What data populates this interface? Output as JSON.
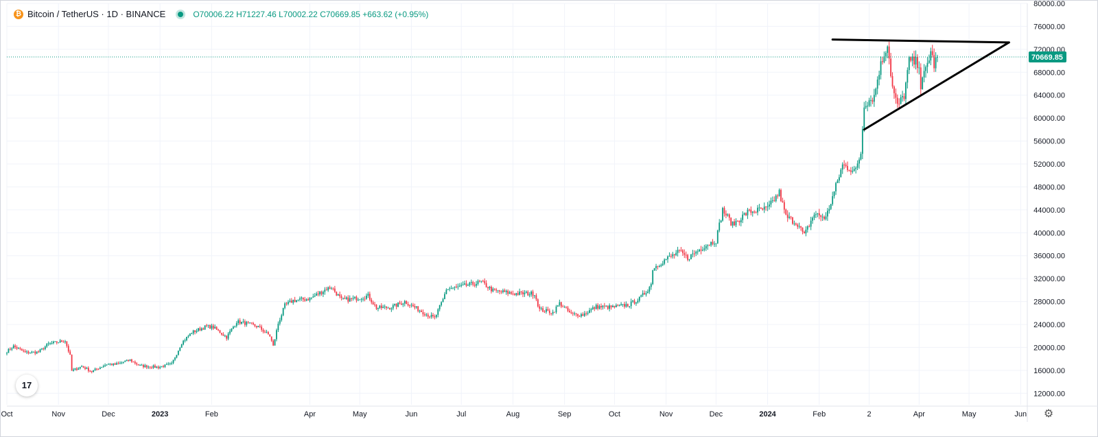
{
  "legend": {
    "symbol_text": "Bitcoin / TetherUS · 1D · BINANCE",
    "open": "O70006.22",
    "high": "H71227.46",
    "low": "L70002.22",
    "close": "C70669.85",
    "change": "+663.62 (+0.95%)"
  },
  "logo": {
    "text": "17",
    "icon": "tradingview-logo-icon"
  },
  "settings": {
    "icon": "gear-icon"
  },
  "colors": {
    "up": "#089981",
    "down": "#f23645",
    "grid": "#f0f3fa",
    "axis_text": "#131722",
    "price_tag": "#089981",
    "drawing": "#000000"
  },
  "chart_data": {
    "type": "candlestick",
    "title": "Bitcoin / TetherUS · 1D · BINANCE",
    "last_price": 70669.85,
    "last_price_label": "70669.85",
    "ylim": [
      10000,
      80000
    ],
    "y_ticks": [
      12000,
      16000,
      20000,
      24000,
      28000,
      32000,
      36000,
      40000,
      44000,
      48000,
      52000,
      56000,
      60000,
      64000,
      68000,
      72000,
      76000,
      80000
    ],
    "y_tick_labels": [
      "12000.00",
      "16000.00",
      "20000.00",
      "24000.00",
      "28000.00",
      "32000.00",
      "36000.00",
      "40000.00",
      "44000.00",
      "48000.00",
      "52000.00",
      "56000.00",
      "60000.00",
      "64000.00",
      "68000.00",
      "72000.00",
      "76000.00",
      "80000.00"
    ],
    "x_ticks": [
      {
        "label": "Oct",
        "date": "2022-10-01"
      },
      {
        "label": "Nov",
        "date": "2022-11-01"
      },
      {
        "label": "Dec",
        "date": "2022-12-01"
      },
      {
        "label": "2023",
        "date": "2023-01-01",
        "bold": true
      },
      {
        "label": "Feb",
        "date": "2023-02-01"
      },
      {
        "label": "Apr",
        "date": "2023-04-01"
      },
      {
        "label": "May",
        "date": "2023-05-01"
      },
      {
        "label": "Jun",
        "date": "2023-06-01"
      },
      {
        "label": "Jul",
        "date": "2023-07-01"
      },
      {
        "label": "Aug",
        "date": "2023-08-01"
      },
      {
        "label": "Sep",
        "date": "2023-09-01"
      },
      {
        "label": "Oct",
        "date": "2023-10-01"
      },
      {
        "label": "Nov",
        "date": "2023-11-01"
      },
      {
        "label": "Dec",
        "date": "2023-12-01"
      },
      {
        "label": "2024",
        "date": "2024-01-01",
        "bold": true
      },
      {
        "label": "Feb",
        "date": "2024-02-01"
      },
      {
        "label": "2",
        "date": "2024-03-02"
      },
      {
        "label": "Apr",
        "date": "2024-04-01"
      },
      {
        "label": "May",
        "date": "2024-05-01"
      },
      {
        "label": "Jun",
        "date": "2024-06-01"
      }
    ],
    "x_start": "2022-10-01",
    "x_end": "2024-06-05",
    "price_path": [
      [
        "2022-10-01",
        19300
      ],
      [
        "2022-10-05",
        20200
      ],
      [
        "2022-10-12",
        19100
      ],
      [
        "2022-10-20",
        19200
      ],
      [
        "2022-10-26",
        20600
      ],
      [
        "2022-11-05",
        21200
      ],
      [
        "2022-11-08",
        18500
      ],
      [
        "2022-11-09",
        15900
      ],
      [
        "2022-11-15",
        16700
      ],
      [
        "2022-11-21",
        15800
      ],
      [
        "2022-11-30",
        17100
      ],
      [
        "2022-12-05",
        17000
      ],
      [
        "2022-12-14",
        17800
      ],
      [
        "2022-12-20",
        16800
      ],
      [
        "2022-12-31",
        16550
      ],
      [
        "2023-01-08",
        17100
      ],
      [
        "2023-01-14",
        20800
      ],
      [
        "2023-01-20",
        22600
      ],
      [
        "2023-01-29",
        23700
      ],
      [
        "2023-02-02",
        23500
      ],
      [
        "2023-02-10",
        21800
      ],
      [
        "2023-02-16",
        24500
      ],
      [
        "2023-02-22",
        24200
      ],
      [
        "2023-03-01",
        23600
      ],
      [
        "2023-03-08",
        22000
      ],
      [
        "2023-03-10",
        20200
      ],
      [
        "2023-03-13",
        24200
      ],
      [
        "2023-03-17",
        27300
      ],
      [
        "2023-03-22",
        28200
      ],
      [
        "2023-04-01",
        28500
      ],
      [
        "2023-04-11",
        30200
      ],
      [
        "2023-04-14",
        30500
      ],
      [
        "2023-04-20",
        28300
      ],
      [
        "2023-04-26",
        28400
      ],
      [
        "2023-05-06",
        29000
      ],
      [
        "2023-05-11",
        26900
      ],
      [
        "2023-05-20",
        27000
      ],
      [
        "2023-05-28",
        28000
      ],
      [
        "2023-06-10",
        25800
      ],
      [
        "2023-06-15",
        25100
      ],
      [
        "2023-06-20",
        28300
      ],
      [
        "2023-06-22",
        30200
      ],
      [
        "2023-07-01",
        30600
      ],
      [
        "2023-07-13",
        31400
      ],
      [
        "2023-07-20",
        29900
      ],
      [
        "2023-08-01",
        29400
      ],
      [
        "2023-08-14",
        29400
      ],
      [
        "2023-08-17",
        26600
      ],
      [
        "2023-08-25",
        26100
      ],
      [
        "2023-08-29",
        27700
      ],
      [
        "2023-09-05",
        25800
      ],
      [
        "2023-09-12",
        25700
      ],
      [
        "2023-09-20",
        27100
      ],
      [
        "2023-09-30",
        27000
      ],
      [
        "2023-10-10",
        27500
      ],
      [
        "2023-10-16",
        28500
      ],
      [
        "2023-10-20",
        29700
      ],
      [
        "2023-10-23",
        31000
      ],
      [
        "2023-10-24",
        33800
      ],
      [
        "2023-11-01",
        35400
      ],
      [
        "2023-11-09",
        36700
      ],
      [
        "2023-11-14",
        35600
      ],
      [
        "2023-11-24",
        37700
      ],
      [
        "2023-12-01",
        38700
      ],
      [
        "2023-12-05",
        44000
      ],
      [
        "2023-12-11",
        41400
      ],
      [
        "2023-12-20",
        43600
      ],
      [
        "2024-01-01",
        44200
      ],
      [
        "2024-01-08",
        47000
      ],
      [
        "2024-01-12",
        42800
      ],
      [
        "2024-01-19",
        41600
      ],
      [
        "2024-01-23",
        39500
      ],
      [
        "2024-01-29",
        43300
      ],
      [
        "2024-02-05",
        42600
      ],
      [
        "2024-02-08",
        45300
      ],
      [
        "2024-02-15",
        51800
      ],
      [
        "2024-02-23",
        50800
      ],
      [
        "2024-02-26",
        54000
      ],
      [
        "2024-02-28",
        62500
      ],
      [
        "2024-03-05",
        63800
      ],
      [
        "2024-03-08",
        68300
      ],
      [
        "2024-03-13",
        73100
      ],
      [
        "2024-03-16",
        65300
      ],
      [
        "2024-03-19",
        62000
      ],
      [
        "2024-03-23",
        64000
      ],
      [
        "2024-03-26",
        69900
      ],
      [
        "2024-04-01",
        69600
      ],
      [
        "2024-04-02",
        65400
      ],
      [
        "2024-04-08",
        71600
      ],
      [
        "2024-04-10",
        69300
      ],
      [
        "2024-04-12",
        70669.85
      ]
    ],
    "drawings": [
      {
        "type": "trendline",
        "name": "triangle-upper",
        "points": [
          [
            "2024-02-09",
            73700
          ],
          [
            "2024-05-25",
            73200
          ]
        ]
      },
      {
        "type": "trendline",
        "name": "triangle-lower",
        "points": [
          [
            "2024-02-28",
            58000
          ],
          [
            "2024-05-25",
            73200
          ]
        ]
      }
    ]
  }
}
